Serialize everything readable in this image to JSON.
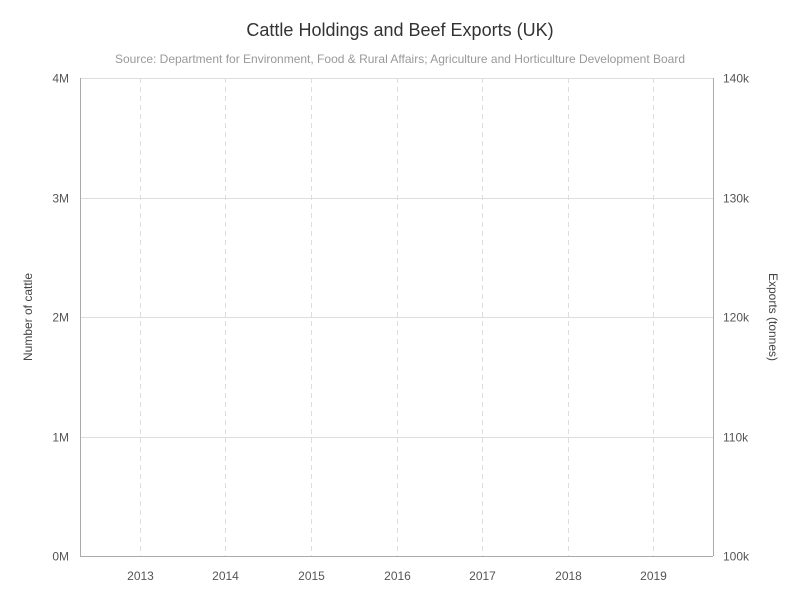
{
  "chart_data": {
    "type": "line",
    "title": "Cattle Holdings and Beef Exports (UK)",
    "subtitle": "Source: Department for Environment, Food & Rural Affairs; Agriculture and Horticulture Development Board",
    "x": [
      "2013",
      "2014",
      "2015",
      "2016",
      "2017",
      "2018",
      "2019"
    ],
    "xlim": [
      2012.3,
      2019.7
    ],
    "ylabel_left": "Number of cattle",
    "ylabel_right": "Exports (tonnes)",
    "ylim_left": [
      0,
      4000000
    ],
    "ylim_right": [
      100000,
      140000
    ],
    "yticks_left": [
      {
        "value": 0,
        "label": "0M"
      },
      {
        "value": 1000000,
        "label": "1M"
      },
      {
        "value": 2000000,
        "label": "2M"
      },
      {
        "value": 3000000,
        "label": "3M"
      },
      {
        "value": 4000000,
        "label": "4M"
      }
    ],
    "yticks_right": [
      {
        "value": 100000,
        "label": "100k"
      },
      {
        "value": 110000,
        "label": "110k"
      },
      {
        "value": 120000,
        "label": "120k"
      },
      {
        "value": 130000,
        "label": "130k"
      },
      {
        "value": 140000,
        "label": "140k"
      }
    ],
    "grid": {
      "horizontal": true,
      "vertical_dashed": true
    },
    "series": [],
    "colors": {
      "grid": "#dddddd",
      "axis": "#aaaaaa",
      "vgrid": "#dddddd"
    }
  }
}
